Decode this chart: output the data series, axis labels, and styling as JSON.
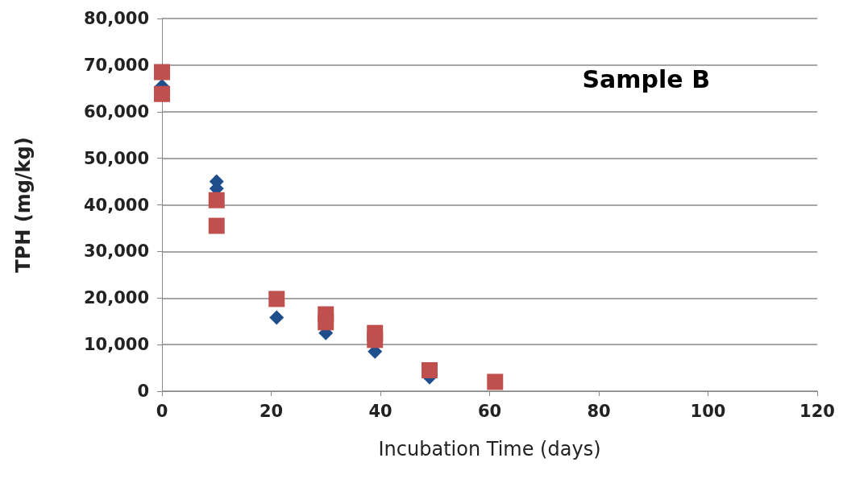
{
  "chart_data": {
    "type": "scatter",
    "title": "Sample B",
    "xlabel": "Incubation Time (days)",
    "ylabel": "TPH (mg/kg)",
    "series": [
      {
        "color": "#1f4e8c",
        "marker": "diamond",
        "x": [
          0,
          10,
          10,
          21,
          30,
          39,
          49
        ],
        "values": [
          65500,
          45000,
          43500,
          15800,
          12500,
          8500,
          3000
        ]
      },
      {
        "color": "#c0504d",
        "marker": "square",
        "x": [
          0,
          0,
          10,
          10,
          21,
          30,
          30,
          39,
          39,
          49,
          61
        ],
        "values": [
          68500,
          63800,
          41000,
          35500,
          19800,
          16500,
          14800,
          12500,
          11000,
          4500,
          2000
        ]
      }
    ],
    "xlim": [
      0,
      120
    ],
    "xticks": [
      0,
      20,
      40,
      60,
      80,
      100,
      120
    ],
    "ylim": [
      0,
      80000
    ],
    "yticks": [
      0,
      {
        "value": 10000,
        "label": "10,000"
      },
      {
        "value": 20000,
        "label": "20,000"
      },
      {
        "value": 30000,
        "label": "30,000"
      },
      {
        "value": 40000,
        "label": "40,000"
      },
      {
        "value": 50000,
        "label": "50,000"
      },
      {
        "value": 60000,
        "label": "60,000"
      },
      {
        "value": 70000,
        "label": "70,000"
      },
      {
        "value": 80000,
        "label": "80,000"
      }
    ],
    "grid": "y"
  }
}
